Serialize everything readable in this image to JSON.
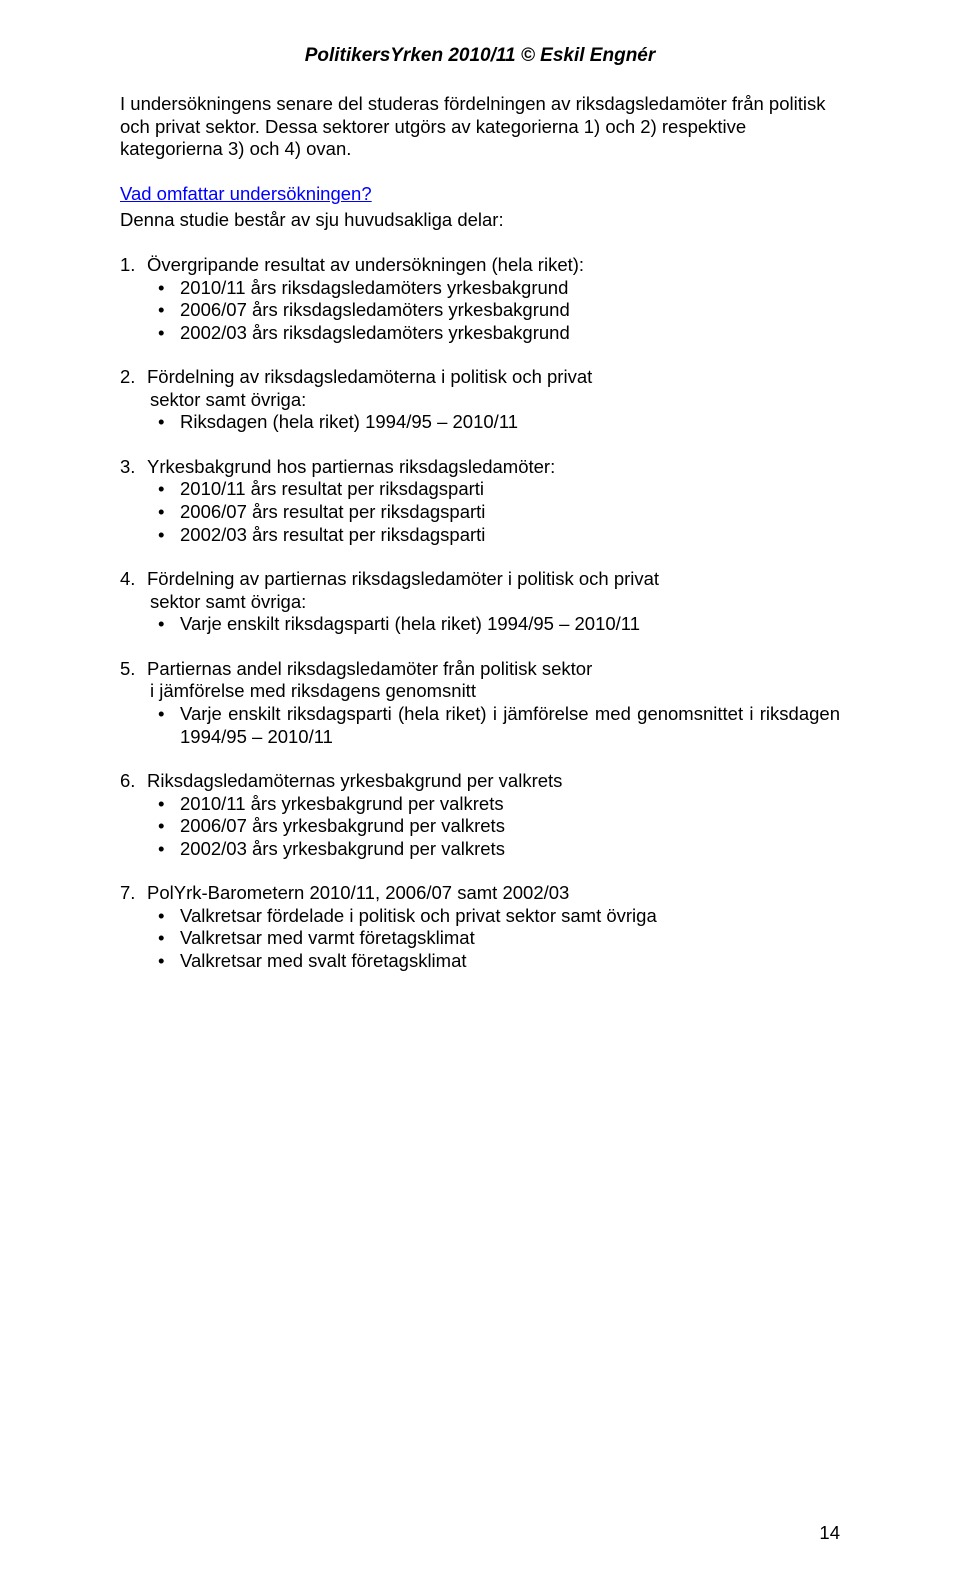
{
  "header": "PolitikersYrken 2010/11 © Eskil Engnér",
  "intro_para": "I undersökningens senare del studeras fördelningen av riksdagsledamöter från politisk och privat sektor. Dessa sektorer utgörs av kategorierna 1) och 2) respektive kategorierna 3) och 4) ovan.",
  "subhead": "Vad omfattar undersökningen?",
  "intro_after_head": "Denna studie består av sju huvudsakliga delar:",
  "sections": [
    {
      "marker": "1.",
      "lead": "Övergripande resultat av undersökningen (hela riket):",
      "sub_lines": [],
      "bullets": [
        "2010/11 års riksdagsledamöters yrkesbakgrund",
        "2006/07 års riksdagsledamöters yrkesbakgrund",
        "2002/03 års riksdagsledamöters yrkesbakgrund"
      ]
    },
    {
      "marker": "2.",
      "lead": "Fördelning av riksdagsledamöterna i politisk och privat",
      "sub_lines": [
        "sektor samt övriga:"
      ],
      "bullets": [
        "Riksdagen (hela riket) 1994/95 – 2010/11"
      ]
    },
    {
      "marker": "3.",
      "lead": "Yrkesbakgrund hos partiernas riksdagsledamöter:",
      "sub_lines": [],
      "bullets": [
        "2010/11 års resultat per riksdagsparti",
        "2006/07 års resultat per riksdagsparti",
        "2002/03 års resultat per riksdagsparti"
      ]
    },
    {
      "marker": "4.",
      "lead": "Fördelning av partiernas riksdagsledamöter i politisk och privat",
      "sub_lines": [
        "sektor samt övriga:"
      ],
      "bullets": [
        "Varje enskilt riksdagsparti (hela riket) 1994/95 – 2010/11"
      ]
    },
    {
      "marker": "5.",
      "lead": "Partiernas andel riksdagsledamöter från politisk sektor",
      "sub_lines": [
        "i jämförelse med riksdagens genomsnitt"
      ],
      "bullets_justify": true,
      "bullets": [
        "Varje enskilt riksdagsparti (hela riket) i jämförelse med genomsnittet i riksdagen 1994/95 – 2010/11"
      ]
    },
    {
      "marker": "6.",
      "lead": "Riksdagsledamöternas yrkesbakgrund per valkrets",
      "sub_lines": [],
      "bullets": [
        "2010/11 års yrkesbakgrund per valkrets",
        "2006/07 års yrkesbakgrund per valkrets",
        "2002/03 års yrkesbakgrund per valkrets"
      ]
    },
    {
      "marker": "7.",
      "lead": "PolYrk-Barometern 2010/11, 2006/07 samt 2002/03",
      "sub_lines": [],
      "bullets": [
        "Valkretsar fördelade i politisk och privat sektor samt övriga",
        "Valkretsar med varmt företagsklimat",
        "Valkretsar med svalt företagsklimat"
      ]
    }
  ],
  "page_number": "14"
}
